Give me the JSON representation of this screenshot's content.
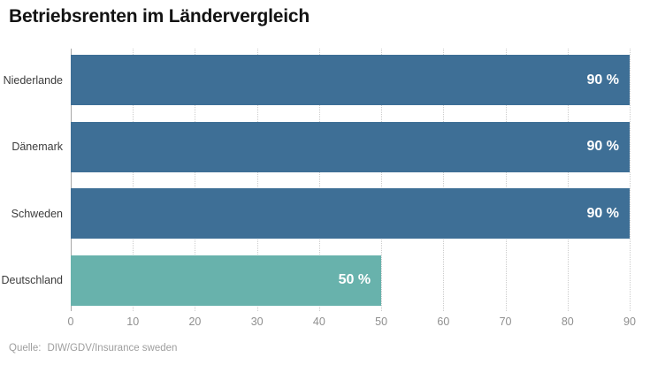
{
  "title": "Betriebsrenten im Ländervergleich",
  "source": {
    "label": "Quelle:",
    "text": "DIW/GDV/Insurance sweden"
  },
  "colors": {
    "bar_default": "#3e6f96",
    "bar_highlight": "#68b2ac",
    "axis": "#a8a8a8",
    "grid": "#cccccc",
    "value_label": "#ffffff",
    "category_label": "#3c3c3c",
    "tick_label": "#8f8f8f",
    "title": "#131313",
    "source": "#9e9e9e"
  },
  "chart_data": {
    "type": "bar",
    "orientation": "horizontal",
    "title": "Betriebsrenten im Ländervergleich",
    "categories": [
      "Niederlande",
      "Dänemark",
      "Schweden",
      "Deutschland"
    ],
    "values": [
      90,
      90,
      90,
      50
    ],
    "value_labels": [
      "90 %",
      "90 %",
      "90 %",
      "50 %"
    ],
    "bar_colors": [
      "#3e6f96",
      "#3e6f96",
      "#3e6f96",
      "#68b2ac"
    ],
    "xlabel": "",
    "ylabel": "",
    "xlim": [
      0,
      90
    ],
    "xticks": [
      0,
      10,
      20,
      30,
      40,
      50,
      60,
      70,
      80,
      90
    ],
    "grid": "vertical-dotted",
    "legend": "none",
    "source": "Quelle: DIW/GDV/Insurance sweden"
  }
}
